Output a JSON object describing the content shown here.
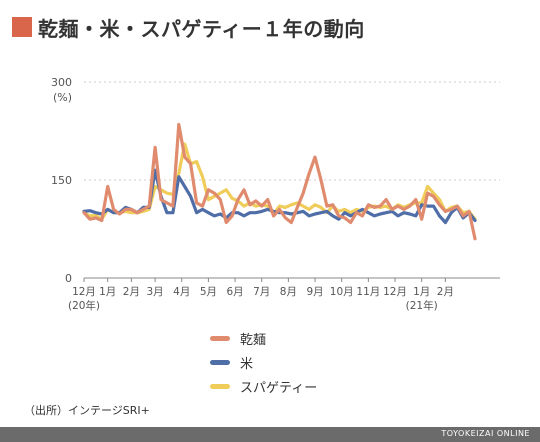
{
  "title": "乾麺・米・スパゲティー１年の動向",
  "accent_color": "#d9654a",
  "source": "（出所）インテージSRI+",
  "footer": "TOYOKEIZAI ONLINE",
  "chart_data": {
    "type": "line",
    "ylabel_unit": "(%)",
    "yticks": [
      0,
      150,
      300
    ],
    "ylim": [
      0,
      300
    ],
    "grid": true,
    "legend_position": "bottom-center",
    "x_tick_labels": [
      {
        "label": "12月",
        "sub": "(20年)",
        "index": 0
      },
      {
        "label": "1月",
        "index": 4
      },
      {
        "label": "2月",
        "index": 8
      },
      {
        "label": "3月",
        "index": 12
      },
      {
        "label": "4月",
        "index": 16.5
      },
      {
        "label": "5月",
        "index": 21
      },
      {
        "label": "6月",
        "index": 25.5
      },
      {
        "label": "7月",
        "index": 30
      },
      {
        "label": "8月",
        "index": 34.5
      },
      {
        "label": "9月",
        "index": 39
      },
      {
        "label": "10月",
        "index": 43.5
      },
      {
        "label": "11月",
        "index": 48
      },
      {
        "label": "12月",
        "index": 52.5
      },
      {
        "label": "1月",
        "sub": "(21年)",
        "index": 57
      },
      {
        "label": "2月",
        "index": 61
      }
    ],
    "series": [
      {
        "name": "乾麺",
        "color": "#e08b6e",
        "values": [
          100,
          90,
          92,
          88,
          140,
          105,
          98,
          105,
          105,
          100,
          105,
          110,
          200,
          120,
          115,
          110,
          235,
          185,
          175,
          115,
          110,
          135,
          130,
          120,
          85,
          95,
          120,
          135,
          112,
          118,
          110,
          120,
          95,
          105,
          92,
          85,
          108,
          130,
          160,
          185,
          150,
          110,
          112,
          95,
          92,
          85,
          100,
          95,
          112,
          108,
          110,
          120,
          105,
          110,
          105,
          110,
          120,
          90,
          130,
          125,
          112,
          102,
          105,
          110,
          95,
          102,
          60
        ]
      },
      {
        "name": "米",
        "color": "#4f6ea8",
        "values": [
          102,
          103,
          100,
          98,
          105,
          100,
          100,
          108,
          105,
          100,
          108,
          108,
          165,
          125,
          100,
          100,
          155,
          140,
          125,
          100,
          105,
          100,
          95,
          98,
          92,
          100,
          100,
          95,
          100,
          100,
          102,
          105,
          102,
          100,
          100,
          98,
          100,
          102,
          95,
          98,
          100,
          102,
          95,
          90,
          100,
          95,
          100,
          105,
          100,
          95,
          98,
          100,
          102,
          95,
          100,
          98,
          95,
          112,
          110,
          110,
          95,
          85,
          100,
          108,
          92,
          100,
          88
        ]
      },
      {
        "name": "スパゲティー",
        "color": "#f0cd5a",
        "values": [
          100,
          95,
          96,
          90,
          105,
          100,
          100,
          102,
          100,
          100,
          102,
          105,
          140,
          135,
          130,
          128,
          160,
          205,
          175,
          178,
          155,
          120,
          125,
          130,
          135,
          122,
          118,
          110,
          115,
          110,
          112,
          110,
          98,
          110,
          108,
          112,
          115,
          110,
          105,
          112,
          108,
          100,
          110,
          102,
          105,
          100,
          105,
          102,
          108,
          110,
          108,
          110,
          105,
          112,
          108,
          112,
          115,
          115,
          140,
          130,
          120,
          102,
          108,
          110,
          100,
          102,
          90
        ]
      }
    ]
  }
}
